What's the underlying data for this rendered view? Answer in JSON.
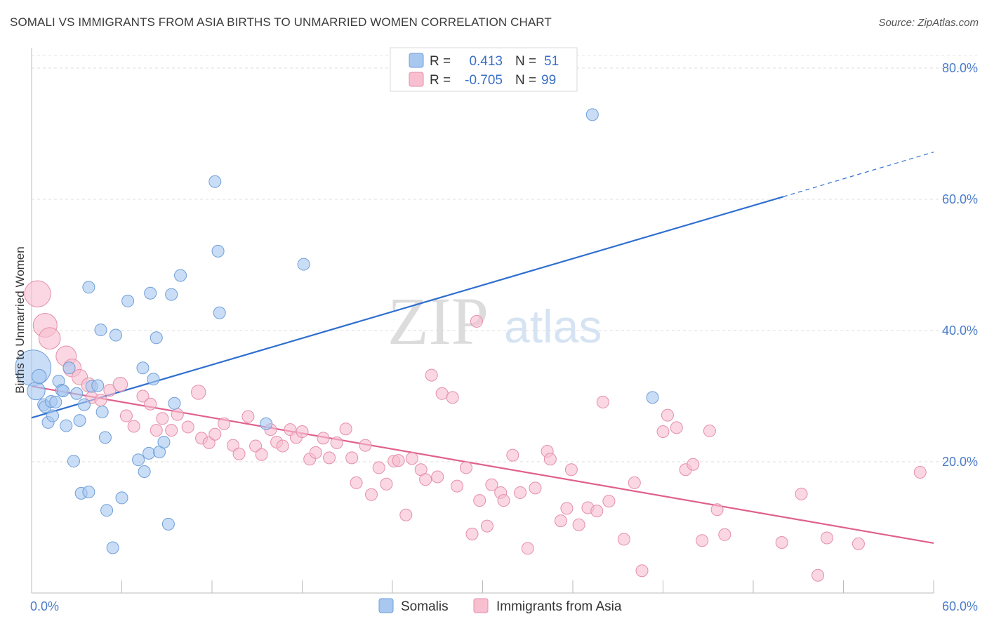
{
  "header": {
    "title": "SOMALI VS IMMIGRANTS FROM ASIA BIRTHS TO UNMARRIED WOMEN CORRELATION CHART",
    "source": "Source: ZipAtlas.com"
  },
  "watermark": {
    "zip": "ZIP",
    "atlas": "atlas"
  },
  "stats_legend": {
    "rows": [
      {
        "r_label": "R =",
        "r_value": "0.413",
        "n_label": "N =",
        "n_value": "51",
        "color": "#a8c8f0",
        "stroke": "#7aa6dc"
      },
      {
        "r_label": "R =",
        "r_value": "-0.705",
        "n_label": "N =",
        "n_value": "99",
        "color": "#f7bfd0",
        "stroke": "#e995b0"
      }
    ]
  },
  "colors": {
    "somalis_fill": "#a8c8f0",
    "somalis_stroke": "#6f9fd8",
    "somalis_line": "#2f6fcf",
    "asia_fill": "#f7bfd0",
    "asia_stroke": "#e58fab",
    "asia_line": "#e0608e",
    "tick_label": "#4a7cc9"
  },
  "chart_data": {
    "type": "scatter",
    "title": "SOMALI VS IMMIGRANTS FROM ASIA BIRTHS TO UNMARRIED WOMEN CORRELATION CHART",
    "xlabel": "",
    "ylabel": "Births to Unmarried Women",
    "xlim": [
      0,
      60
    ],
    "ylim": [
      0,
      80
    ],
    "x_tick_labels": [
      "0.0%",
      "60.0%"
    ],
    "y_ticks": [
      20,
      40,
      60,
      80
    ],
    "y_tick_labels": [
      "20.0%",
      "40.0%",
      "60.0%",
      "80.0%"
    ],
    "grid": true,
    "legend": "bottom-center",
    "series": [
      {
        "name": "Somalis",
        "r": 0.413,
        "n": 51,
        "trend": {
          "x0": 0,
          "y0": 26.7,
          "x1": 50,
          "y1": 60.4,
          "dash_to_x": 60,
          "dash_to_y": 67.2
        },
        "points": [
          [
            0.1,
            34.3,
            3.0
          ],
          [
            0.3,
            30.8,
            1.5
          ],
          [
            0.5,
            33.0,
            1.2
          ],
          [
            0.8,
            28.7,
            1.0
          ],
          [
            0.9,
            28.4,
            1.0
          ],
          [
            1.1,
            26.0,
            1.0
          ],
          [
            1.3,
            29.2,
            1.0
          ],
          [
            1.4,
            27.0,
            1.0
          ],
          [
            1.6,
            29.1,
            1.0
          ],
          [
            1.8,
            32.3,
            1.0
          ],
          [
            2.0,
            30.9,
            1.0
          ],
          [
            2.1,
            30.8,
            1.0
          ],
          [
            2.3,
            25.5,
            1.0
          ],
          [
            2.5,
            34.3,
            1.0
          ],
          [
            2.8,
            20.1,
            1.0
          ],
          [
            3.0,
            30.4,
            1.0
          ],
          [
            3.2,
            26.3,
            1.0
          ],
          [
            3.3,
            15.2,
            1.0
          ],
          [
            3.5,
            28.7,
            1.0
          ],
          [
            3.8,
            15.4,
            1.0
          ],
          [
            3.8,
            46.6,
            1.0
          ],
          [
            4.0,
            31.5,
            1.0
          ],
          [
            4.4,
            31.6,
            1.0
          ],
          [
            4.6,
            40.1,
            1.0
          ],
          [
            4.7,
            27.6,
            1.0
          ],
          [
            4.9,
            23.7,
            1.0
          ],
          [
            5.0,
            12.6,
            1.0
          ],
          [
            5.4,
            6.9,
            1.0
          ],
          [
            5.6,
            39.3,
            1.0
          ],
          [
            6.0,
            14.5,
            1.0
          ],
          [
            6.4,
            44.5,
            1.0
          ],
          [
            7.1,
            20.3,
            1.0
          ],
          [
            7.4,
            34.3,
            1.0
          ],
          [
            7.5,
            18.5,
            1.0
          ],
          [
            7.8,
            21.3,
            1.0
          ],
          [
            7.9,
            45.7,
            1.0
          ],
          [
            8.1,
            32.6,
            1.0
          ],
          [
            8.3,
            38.9,
            1.0
          ],
          [
            8.5,
            21.5,
            1.0
          ],
          [
            8.8,
            23.0,
            1.0
          ],
          [
            9.1,
            10.5,
            1.0
          ],
          [
            9.3,
            45.5,
            1.0
          ],
          [
            9.5,
            28.9,
            1.0
          ],
          [
            9.9,
            48.4,
            1.0
          ],
          [
            12.2,
            62.7,
            1.0
          ],
          [
            12.4,
            52.1,
            1.0
          ],
          [
            12.5,
            42.7,
            1.0
          ],
          [
            15.6,
            25.8,
            1.0
          ],
          [
            18.1,
            50.1,
            1.0
          ],
          [
            37.3,
            72.9,
            1.0
          ],
          [
            41.3,
            29.8,
            1.0
          ]
        ]
      },
      {
        "name": "Immigrants from Asia",
        "r": -0.705,
        "n": 99,
        "trend": {
          "x0": 0,
          "y0": 31.5,
          "x1": 60,
          "y1": 7.6
        },
        "points": [
          [
            0.4,
            45.6,
            2.2
          ],
          [
            0.9,
            40.8,
            2.0
          ],
          [
            1.2,
            38.8,
            1.8
          ],
          [
            2.3,
            36.1,
            1.7
          ],
          [
            2.7,
            34.3,
            1.5
          ],
          [
            3.2,
            32.9,
            1.3
          ],
          [
            3.8,
            31.7,
            1.2
          ],
          [
            4.0,
            29.8,
            1.0
          ],
          [
            4.6,
            29.4,
            1.0
          ],
          [
            5.2,
            30.9,
            1.0
          ],
          [
            5.9,
            31.8,
            1.2
          ],
          [
            6.3,
            27.0,
            1.0
          ],
          [
            6.8,
            25.4,
            1.0
          ],
          [
            7.4,
            30.0,
            1.0
          ],
          [
            7.9,
            28.8,
            1.0
          ],
          [
            8.3,
            24.8,
            1.0
          ],
          [
            8.7,
            26.6,
            1.0
          ],
          [
            9.3,
            24.8,
            1.0
          ],
          [
            9.7,
            27.2,
            1.0
          ],
          [
            10.4,
            25.3,
            1.0
          ],
          [
            11.1,
            30.6,
            1.2
          ],
          [
            11.3,
            23.6,
            1.0
          ],
          [
            11.8,
            22.9,
            1.0
          ],
          [
            12.2,
            24.2,
            1.0
          ],
          [
            12.8,
            25.8,
            1.0
          ],
          [
            13.4,
            22.5,
            1.0
          ],
          [
            13.8,
            21.2,
            1.0
          ],
          [
            14.4,
            26.9,
            1.0
          ],
          [
            14.9,
            22.4,
            1.0
          ],
          [
            15.3,
            21.1,
            1.0
          ],
          [
            15.9,
            24.9,
            1.0
          ],
          [
            16.3,
            23.0,
            1.0
          ],
          [
            16.7,
            22.4,
            1.0
          ],
          [
            17.2,
            24.9,
            1.0
          ],
          [
            17.6,
            23.7,
            1.0
          ],
          [
            18.0,
            24.6,
            1.0
          ],
          [
            18.5,
            20.4,
            1.0
          ],
          [
            18.9,
            21.4,
            1.0
          ],
          [
            19.4,
            23.6,
            1.0
          ],
          [
            19.8,
            20.6,
            1.0
          ],
          [
            20.3,
            22.9,
            1.0
          ],
          [
            20.9,
            25.0,
            1.0
          ],
          [
            21.3,
            20.6,
            1.0
          ],
          [
            21.6,
            16.8,
            1.0
          ],
          [
            22.2,
            22.5,
            1.0
          ],
          [
            22.6,
            15.0,
            1.0
          ],
          [
            23.1,
            19.1,
            1.0
          ],
          [
            23.6,
            16.6,
            1.0
          ],
          [
            24.1,
            20.1,
            1.0
          ],
          [
            24.4,
            20.2,
            1.0
          ],
          [
            24.9,
            11.9,
            1.0
          ],
          [
            25.3,
            20.5,
            1.0
          ],
          [
            25.9,
            18.8,
            1.0
          ],
          [
            26.2,
            17.3,
            1.0
          ],
          [
            26.6,
            33.2,
            1.0
          ],
          [
            27.0,
            17.7,
            1.0
          ],
          [
            27.3,
            30.4,
            1.0
          ],
          [
            28.0,
            29.8,
            1.0
          ],
          [
            28.3,
            16.3,
            1.0
          ],
          [
            28.9,
            19.1,
            1.0
          ],
          [
            29.3,
            9.0,
            1.0
          ],
          [
            29.6,
            41.4,
            1.0
          ],
          [
            29.8,
            14.1,
            1.0
          ],
          [
            30.3,
            10.2,
            1.0
          ],
          [
            30.6,
            16.5,
            1.0
          ],
          [
            31.2,
            15.3,
            1.0
          ],
          [
            31.4,
            14.1,
            1.0
          ],
          [
            32.0,
            21.0,
            1.0
          ],
          [
            32.5,
            15.3,
            1.0
          ],
          [
            33.0,
            6.8,
            1.0
          ],
          [
            33.5,
            16.0,
            1.0
          ],
          [
            34.3,
            21.6,
            1.0
          ],
          [
            34.5,
            20.4,
            1.0
          ],
          [
            35.2,
            11.0,
            1.0
          ],
          [
            35.6,
            12.9,
            1.0
          ],
          [
            35.9,
            18.8,
            1.0
          ],
          [
            36.4,
            10.4,
            1.0
          ],
          [
            37.0,
            13.0,
            1.0
          ],
          [
            37.6,
            12.5,
            1.0
          ],
          [
            38.4,
            14.0,
            1.0
          ],
          [
            38.0,
            29.1,
            1.0
          ],
          [
            39.4,
            8.2,
            1.0
          ],
          [
            40.1,
            16.8,
            1.0
          ],
          [
            40.6,
            3.4,
            1.0
          ],
          [
            42.0,
            24.6,
            1.0
          ],
          [
            42.3,
            27.1,
            1.0
          ],
          [
            42.9,
            25.2,
            1.0
          ],
          [
            43.5,
            18.8,
            1.0
          ],
          [
            44.0,
            19.6,
            1.0
          ],
          [
            44.6,
            8.0,
            1.0
          ],
          [
            45.1,
            24.7,
            1.0
          ],
          [
            45.6,
            12.7,
            1.0
          ],
          [
            46.1,
            8.9,
            1.0
          ],
          [
            49.9,
            7.7,
            1.0
          ],
          [
            51.2,
            15.1,
            1.0
          ],
          [
            52.3,
            2.7,
            1.0
          ],
          [
            52.9,
            8.4,
            1.0
          ],
          [
            55.0,
            7.5,
            1.0
          ],
          [
            59.1,
            18.4,
            1.0
          ]
        ]
      }
    ]
  },
  "bottom_legend": {
    "items": [
      {
        "label": "Somalis"
      },
      {
        "label": "Immigrants from Asia"
      }
    ]
  }
}
